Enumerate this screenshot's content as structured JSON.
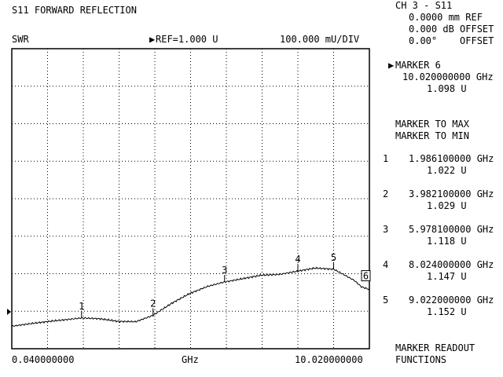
{
  "header": {
    "title": "S11 FORWARD REFLECTION",
    "format": "SWR",
    "ref_marker": "▶",
    "ref": "REF=1.000 U",
    "scale": "100.000 mU/DIV"
  },
  "side": {
    "channel": "CH 3 - S11",
    "offset_mm": "0.0000 mm REF",
    "offset_db": "0.000 dB OFFSET",
    "offset_deg": "0.00°    OFFSET",
    "active_marker_pointer": "▶",
    "active_marker": "MARKER 6",
    "active_freq": "10.020000000 GHz",
    "active_value": "1.098 U",
    "menu_max": "MARKER TO MAX",
    "menu_min": "MARKER TO MIN",
    "menu_readout_1": "MARKER READOUT",
    "menu_readout_2": "FUNCTIONS"
  },
  "markers": [
    {
      "id": "1",
      "freq": "1.986100000 GHz",
      "value": "1.022 U"
    },
    {
      "id": "2",
      "freq": "3.982100000 GHz",
      "value": "1.029 U"
    },
    {
      "id": "3",
      "freq": "5.978100000 GHz",
      "value": "1.118 U"
    },
    {
      "id": "4",
      "freq": "8.024000000 GHz",
      "value": "1.147 U"
    },
    {
      "id": "5",
      "freq": "9.022000000 GHz",
      "value": "1.152 U"
    }
  ],
  "footer": {
    "start": "0.040000000",
    "unit": "GHz",
    "stop": "10.020000000"
  },
  "chart_data": {
    "type": "line",
    "title": "S11 FORWARD REFLECTION",
    "xlabel": "GHz",
    "ylabel": "SWR",
    "xlim": [
      0.04,
      10.02
    ],
    "ylim": [
      0.94,
      1.74
    ],
    "grid": true,
    "reference_value": 1.0,
    "series": [
      {
        "x": [
          0.04,
          0.5,
          1.0,
          1.5,
          1.986,
          2.5,
          3.0,
          3.5,
          3.982,
          4.5,
          5.0,
          5.5,
          5.978,
          6.5,
          7.0,
          7.5,
          8.024,
          8.5,
          9.022,
          9.3,
          9.6,
          9.8,
          10.02
        ],
        "y": [
          1.0,
          1.006,
          1.012,
          1.017,
          1.022,
          1.02,
          1.013,
          1.012,
          1.029,
          1.061,
          1.087,
          1.106,
          1.118,
          1.127,
          1.136,
          1.138,
          1.147,
          1.155,
          1.152,
          1.138,
          1.122,
          1.105,
          1.098
        ]
      }
    ],
    "marker_points": [
      {
        "label": "1",
        "x": 1.986,
        "y": 1.022
      },
      {
        "label": "2",
        "x": 3.982,
        "y": 1.029
      },
      {
        "label": "3",
        "x": 5.978,
        "y": 1.118
      },
      {
        "label": "4",
        "x": 8.024,
        "y": 1.147
      },
      {
        "label": "5",
        "x": 9.022,
        "y": 1.152
      },
      {
        "label": "6",
        "x": 10.02,
        "y": 1.098,
        "boxed": true
      }
    ]
  }
}
